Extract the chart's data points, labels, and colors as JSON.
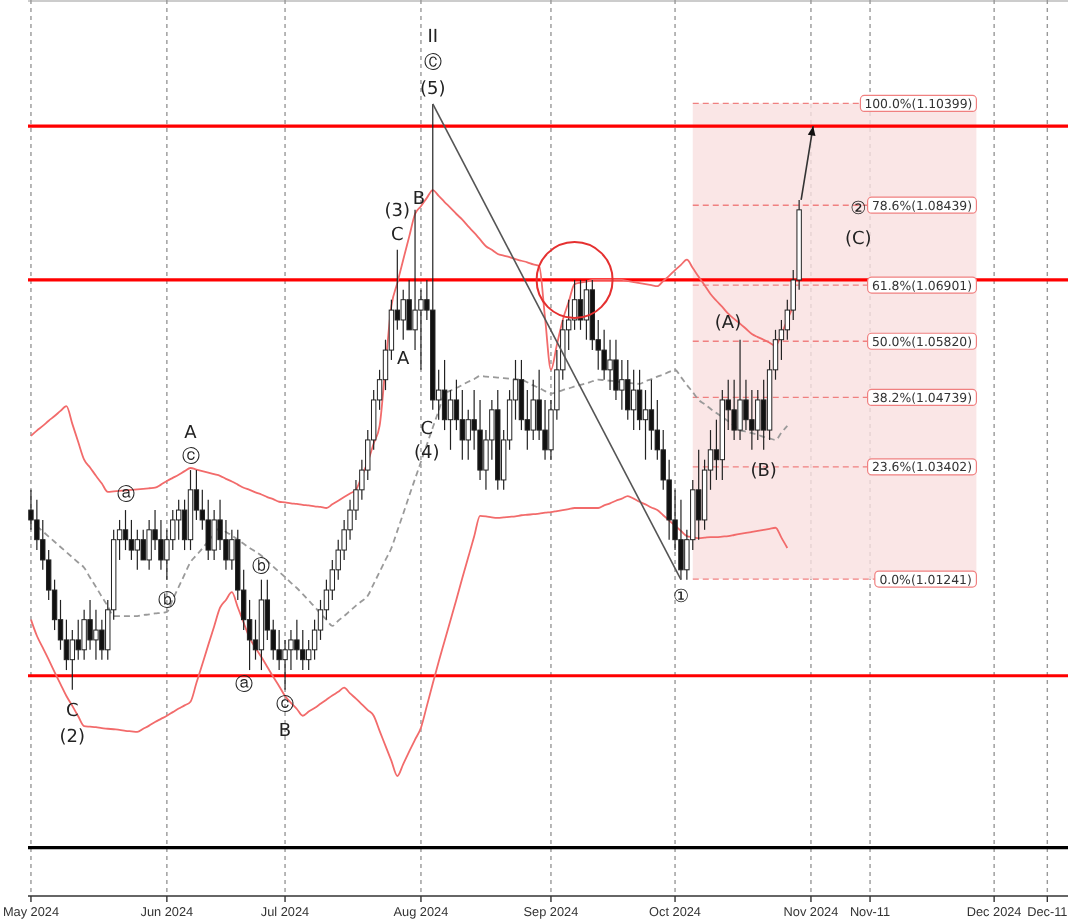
{
  "chart_data": {
    "type": "candlestick",
    "categories": [
      "May 2024",
      null,
      null,
      null,
      null,
      null,
      null,
      null,
      null,
      null,
      null,
      null,
      null,
      null,
      null,
      null,
      null,
      null,
      null,
      null,
      null,
      null,
      null,
      "Jun 2024",
      null,
      null,
      null,
      null,
      null,
      null,
      null,
      null,
      null,
      null,
      null,
      null,
      null,
      null,
      null,
      null,
      null,
      null,
      null,
      "Jul 2024",
      null,
      null,
      null,
      null,
      null,
      null,
      null,
      null,
      null,
      null,
      null,
      null,
      null,
      null,
      null,
      null,
      null,
      null,
      null,
      null,
      null,
      null,
      "Aug 2024",
      null,
      null,
      null,
      null,
      null,
      null,
      null,
      null,
      null,
      null,
      null,
      null,
      null,
      null,
      null,
      null,
      null,
      null,
      null,
      null,
      null,
      "Sep 2024",
      null,
      null,
      null,
      null,
      null,
      null,
      null,
      null,
      null,
      null,
      null,
      null,
      null,
      null,
      null,
      null,
      null,
      null,
      null,
      null,
      "Oct 2024",
      null,
      null,
      null,
      null,
      null,
      null,
      null,
      null,
      null,
      null,
      null,
      null,
      null,
      null,
      null,
      null,
      null,
      null,
      null,
      null,
      null,
      null,
      "Nov 2024",
      null,
      null,
      null,
      null,
      null,
      null,
      null,
      null,
      null,
      "Nov-11",
      null,
      null,
      null,
      null,
      null,
      null,
      null,
      null,
      null,
      null,
      null,
      null,
      null,
      null,
      null,
      null,
      null,
      null,
      null,
      null,
      "Dec 2024",
      null,
      null,
      null,
      null,
      null,
      null,
      null,
      null,
      "Dec-11",
      null,
      null,
      null
    ],
    "ohlc": [
      [
        1.0257,
        1.0296,
        1.0219,
        1.0238
      ],
      [
        1.0238,
        1.0277,
        1.018,
        1.02
      ],
      [
        1.02,
        1.0238,
        1.0142,
        1.0161
      ],
      [
        1.0161,
        1.018,
        1.0084,
        1.0103
      ],
      [
        1.0103,
        1.0123,
        1.0026,
        1.0046
      ],
      [
        1.0046,
        1.0084,
        0.9988,
        1.0007
      ],
      [
        1.0007,
        1.0046,
        0.9949,
        0.9969
      ],
      [
        0.9969,
        1.0026,
        0.9911,
        1.0007
      ],
      [
        1.0007,
        1.0046,
        0.9969,
        0.9988
      ],
      [
        0.9988,
        1.0065,
        0.9969,
        1.0046
      ],
      [
        1.0046,
        1.0084,
        0.9988,
        1.0007
      ],
      [
        1.0007,
        1.0065,
        0.9969,
        1.0026
      ],
      [
        1.0026,
        1.0046,
        0.9969,
        0.9988
      ],
      [
        0.9988,
        1.0084,
        0.9969,
        1.0065
      ],
      [
        1.0065,
        1.0219,
        1.0046,
        1.02
      ],
      [
        1.02,
        1.0238,
        1.0161,
        1.0219
      ],
      [
        1.0219,
        1.0257,
        1.018,
        1.02
      ],
      [
        1.02,
        1.0238,
        1.0161,
        1.018
      ],
      [
        1.018,
        1.0219,
        1.0142,
        1.02
      ],
      [
        1.02,
        1.0219,
        1.0161,
        1.0161
      ],
      [
        1.0161,
        1.0238,
        1.0142,
        1.0219
      ],
      [
        1.0219,
        1.0257,
        1.018,
        1.02
      ],
      [
        1.02,
        1.0238,
        1.0142,
        1.0161
      ],
      [
        1.0161,
        1.0219,
        1.0123,
        1.02
      ],
      [
        1.02,
        1.0257,
        1.018,
        1.0238
      ],
      [
        1.0238,
        1.0277,
        1.02,
        1.0257
      ],
      [
        1.0257,
        1.0277,
        1.018,
        1.02
      ],
      [
        1.02,
        1.0334,
        1.018,
        1.0296
      ],
      [
        1.0296,
        1.0334,
        1.0238,
        1.0257
      ],
      [
        1.0257,
        1.0296,
        1.0219,
        1.0238
      ],
      [
        1.0238,
        1.0277,
        1.0161,
        1.018
      ],
      [
        1.018,
        1.0257,
        1.0161,
        1.0238
      ],
      [
        1.0238,
        1.0277,
        1.018,
        1.02
      ],
      [
        1.02,
        1.0238,
        1.0142,
        1.0161
      ],
      [
        1.0161,
        1.0219,
        1.0142,
        1.02
      ],
      [
        1.02,
        1.0219,
        1.0084,
        1.0103
      ],
      [
        1.0103,
        1.0142,
        1.0026,
        1.0046
      ],
      [
        1.0046,
        1.0084,
        0.9949,
        1.0007
      ],
      [
        1.0007,
        1.0046,
        0.9969,
        0.9988
      ],
      [
        0.9988,
        1.0123,
        0.9949,
        1.0084
      ],
      [
        1.0084,
        1.0123,
        1.0007,
        1.0026
      ],
      [
        1.0026,
        1.0046,
        0.9969,
        0.9988
      ],
      [
        0.9988,
        1.0026,
        0.9949,
        0.9969
      ],
      [
        0.9969,
        1.0007,
        0.9911,
        0.9988
      ],
      [
        0.9988,
        1.0026,
        0.9949,
        1.0007
      ],
      [
        1.0007,
        1.0046,
        0.9969,
        0.9988
      ],
      [
        0.9988,
        1.0026,
        0.9949,
        0.9969
      ],
      [
        0.9969,
        1.0007,
        0.9949,
        0.9988
      ],
      [
        0.9988,
        1.0046,
        0.9969,
        1.0026
      ],
      [
        1.0026,
        1.0084,
        1.0007,
        1.0065
      ],
      [
        1.0065,
        1.0123,
        1.0046,
        1.0103
      ],
      [
        1.0103,
        1.0161,
        1.0084,
        1.0142
      ],
      [
        1.0142,
        1.02,
        1.0123,
        1.018
      ],
      [
        1.018,
        1.0238,
        1.0161,
        1.0219
      ],
      [
        1.0219,
        1.0277,
        1.02,
        1.0257
      ],
      [
        1.0257,
        1.0315,
        1.0238,
        1.0296
      ],
      [
        1.0296,
        1.0354,
        1.0277,
        1.0334
      ],
      [
        1.0334,
        1.0411,
        1.0315,
        1.0392
      ],
      [
        1.0392,
        1.0488,
        1.0373,
        1.0469
      ],
      [
        1.0469,
        1.0527,
        1.045,
        1.0508
      ],
      [
        1.0508,
        1.0585,
        1.0488,
        1.0565
      ],
      [
        1.0565,
        1.0662,
        1.0546,
        1.0642
      ],
      [
        1.0642,
        1.0758,
        1.0604,
        1.0623
      ],
      [
        1.0623,
        1.0681,
        1.0585,
        1.0662
      ],
      [
        1.0662,
        1.07,
        1.0604,
        1.0604
      ],
      [
        1.0604,
        1.0835,
        1.0565,
        1.0642
      ],
      [
        1.0642,
        1.0681,
        1.0527,
        1.0662
      ],
      [
        1.0662,
        1.07,
        1.0623,
        1.0642
      ],
      [
        1.0642,
        1.1039,
        1.045,
        1.0469
      ],
      [
        1.0469,
        1.0527,
        1.0431,
        1.0488
      ],
      [
        1.0488,
        1.0546,
        1.0411,
        1.0431
      ],
      [
        1.0431,
        1.0488,
        1.0373,
        1.0469
      ],
      [
        1.0469,
        1.0508,
        1.0411,
        1.0431
      ],
      [
        1.0431,
        1.0488,
        1.0354,
        1.0392
      ],
      [
        1.0392,
        1.045,
        1.0354,
        1.0431
      ],
      [
        1.0431,
        1.0488,
        1.0373,
        1.0411
      ],
      [
        1.0411,
        1.0469,
        1.0315,
        1.0334
      ],
      [
        1.0334,
        1.0411,
        1.0296,
        1.0392
      ],
      [
        1.0392,
        1.0469,
        1.0354,
        1.045
      ],
      [
        1.045,
        1.0488,
        1.0296,
        1.0315
      ],
      [
        1.0315,
        1.0411,
        1.0296,
        1.0392
      ],
      [
        1.0392,
        1.0488,
        1.0373,
        1.0469
      ],
      [
        1.0469,
        1.0546,
        1.0431,
        1.0508
      ],
      [
        1.0508,
        1.0546,
        1.0411,
        1.0431
      ],
      [
        1.0431,
        1.0488,
        1.0373,
        1.0411
      ],
      [
        1.0411,
        1.0508,
        1.0392,
        1.0469
      ],
      [
        1.0469,
        1.0527,
        1.0392,
        1.0411
      ],
      [
        1.0411,
        1.0469,
        1.0354,
        1.0373
      ],
      [
        1.0373,
        1.0469,
        1.0354,
        1.045
      ],
      [
        1.045,
        1.0565,
        1.0431,
        1.0527
      ],
      [
        1.0527,
        1.0623,
        1.0508,
        1.0604
      ],
      [
        1.0604,
        1.0662,
        1.0565,
        1.0623
      ],
      [
        1.0623,
        1.07,
        1.0604,
        1.0662
      ],
      [
        1.0662,
        1.07,
        1.0604,
        1.0623
      ],
      [
        1.0623,
        1.07,
        1.0585,
        1.0681
      ],
      [
        1.0681,
        1.07,
        1.0565,
        1.0585
      ],
      [
        1.0585,
        1.0623,
        1.0527,
        1.0565
      ],
      [
        1.0565,
        1.0604,
        1.0508,
        1.0527
      ],
      [
        1.0527,
        1.0585,
        1.0488,
        1.0546
      ],
      [
        1.0546,
        1.0585,
        1.0469,
        1.0488
      ],
      [
        1.0488,
        1.0546,
        1.045,
        1.0508
      ],
      [
        1.0508,
        1.0546,
        1.0431,
        1.045
      ],
      [
        1.045,
        1.0527,
        1.0411,
        1.0488
      ],
      [
        1.0488,
        1.0527,
        1.0411,
        1.0431
      ],
      [
        1.0431,
        1.0488,
        1.0354,
        1.045
      ],
      [
        1.045,
        1.0508,
        1.0373,
        1.0411
      ],
      [
        1.0411,
        1.0469,
        1.0354,
        1.0373
      ],
      [
        1.0373,
        1.0411,
        1.0296,
        1.0315
      ],
      [
        1.0315,
        1.0354,
        1.02,
        1.0238
      ],
      [
        1.0238,
        1.0296,
        1.018,
        1.02
      ],
      [
        1.02,
        1.0277,
        1.0123,
        1.0142
      ],
      [
        1.0142,
        1.0219,
        1.0123,
        1.02
      ],
      [
        1.02,
        1.0315,
        1.018,
        1.0296
      ],
      [
        1.0296,
        1.0373,
        1.02,
        1.0238
      ],
      [
        1.0238,
        1.0354,
        1.0219,
        1.0334
      ],
      [
        1.0334,
        1.0411,
        1.0296,
        1.0373
      ],
      [
        1.0373,
        1.0431,
        1.0315,
        1.0354
      ],
      [
        1.0354,
        1.0488,
        1.0315,
        1.0469
      ],
      [
        1.0469,
        1.0508,
        1.0411,
        1.045
      ],
      [
        1.045,
        1.0508,
        1.0392,
        1.0411
      ],
      [
        1.0411,
        1.0585,
        1.0392,
        1.0469
      ],
      [
        1.0469,
        1.0508,
        1.0411,
        1.0431
      ],
      [
        1.0431,
        1.0488,
        1.0373,
        1.0411
      ],
      [
        1.0411,
        1.0488,
        1.0392,
        1.0469
      ],
      [
        1.0469,
        1.0508,
        1.0373,
        1.0411
      ],
      [
        1.0411,
        1.0546,
        1.0392,
        1.0527
      ],
      [
        1.0527,
        1.0604,
        1.0508,
        1.0585
      ],
      [
        1.0585,
        1.0623,
        1.0546,
        1.0604
      ],
      [
        1.0604,
        1.0662,
        1.0585,
        1.0642
      ],
      [
        1.0642,
        1.0719,
        1.0623,
        1.07
      ],
      [
        1.07,
        1.0854,
        1.0681,
        1.0835
      ],
      null,
      null,
      null,
      null,
      null,
      null,
      null,
      null,
      null,
      null,
      null,
      null,
      null,
      null,
      null,
      null,
      null,
      null,
      null,
      null,
      null,
      null,
      null,
      null,
      null,
      null,
      null,
      null,
      null,
      null,
      null,
      null,
      null,
      null,
      null,
      null,
      null,
      null,
      null,
      null,
      null,
      null,
      null,
      null,
      null
    ],
    "series": [
      {
        "type": "line",
        "color": "#f26b6b",
        "values": [
          1.04,
          1.041,
          1.0419,
          1.0429,
          1.0438,
          1.0448,
          1.0457,
          1.0423,
          1.0388,
          1.0354,
          1.0339,
          1.0323,
          1.0308,
          1.0292,
          1.0293,
          1.0294,
          1.0295,
          1.0296,
          1.0297,
          1.0298,
          1.0299,
          1.03,
          1.0306,
          1.0313,
          1.0319,
          1.0325,
          1.0332,
          1.0338,
          1.0335,
          1.0332,
          1.0329,
          1.0326,
          1.0323,
          1.0317,
          1.0312,
          1.0306,
          1.03,
          1.0296,
          1.0291,
          1.0287,
          1.0282,
          1.0278,
          1.0273,
          1.0272,
          1.027,
          1.0269,
          1.0267,
          1.0266,
          1.0264,
          1.0263,
          1.0261,
          1.0268,
          1.0275,
          1.0282,
          1.0289,
          1.0296,
          1.0323,
          1.035,
          1.0385,
          1.0419,
          1.0535,
          1.065,
          1.0694,
          1.0739,
          1.0783,
          1.0827,
          1.0842,
          1.0858,
          1.0873,
          1.0862,
          1.085,
          1.0839,
          1.0827,
          1.0816,
          1.0803,
          1.0791,
          1.0778,
          1.0765,
          1.0758,
          1.075,
          1.0747,
          1.0744,
          1.074,
          1.0737,
          1.0734,
          1.073,
          1.0727,
          1.0627,
          1.0527,
          1.0575,
          1.0623,
          1.0658,
          1.0692,
          1.0695,
          1.0697,
          1.07,
          1.07,
          1.07,
          1.07,
          1.07,
          1.07,
          1.0698,
          1.0696,
          1.0694,
          1.0692,
          1.069,
          1.0688,
          1.0698,
          1.0708,
          1.0719,
          1.0729,
          1.0739,
          1.0723,
          1.0706,
          1.069,
          1.0673,
          1.066,
          1.0648,
          1.0635,
          1.0625,
          1.0616,
          1.0606,
          1.0596,
          1.059,
          1.0585,
          1.0579,
          1.0573,
          1.0596,
          1.0623,
          1.065,
          null,
          null,
          null,
          null,
          null,
          null,
          null,
          null,
          null,
          null,
          null,
          null,
          null,
          null,
          null,
          null,
          null,
          null,
          null,
          null,
          null,
          null,
          null,
          null,
          null,
          null,
          null,
          null,
          null,
          null,
          null,
          null,
          null,
          null,
          null,
          null,
          null,
          null,
          null,
          null,
          null,
          null,
          null,
          null,
          null,
          null
        ]
      },
      {
        "type": "line",
        "color": "#f26b6b",
        "values": [
          1.0046,
          1.0015,
          0.9992,
          0.9969,
          0.9945,
          0.9922,
          0.9899,
          0.988,
          0.986,
          0.9841,
          0.984,
          0.9839,
          0.9837,
          0.9836,
          0.9835,
          0.9834,
          0.9832,
          0.9831,
          0.983,
          0.9836,
          0.9842,
          0.9849,
          0.9855,
          0.9861,
          0.9868,
          0.9875,
          0.9881,
          0.9888,
          0.9924,
          0.996,
          0.9997,
          1.0033,
          1.0069,
          1.0084,
          1.0099,
          1.007,
          1.004,
          1.0011,
          0.9992,
          0.9974,
          0.9955,
          0.9936,
          0.9918,
          0.9899,
          0.9886,
          0.9874,
          0.9861,
          0.9869,
          0.9876,
          0.9884,
          0.9892,
          0.99,
          0.9907,
          0.9915,
          0.9904,
          0.9894,
          0.9883,
          0.9872,
          0.9861,
          0.9832,
          0.9803,
          0.9774,
          0.9745,
          0.9768,
          0.9792,
          0.9815,
          0.9838,
          0.988,
          0.9923,
          0.9965,
          1.0005,
          1.0045,
          1.0085,
          1.0126,
          1.0166,
          1.0206,
          1.0246,
          1.0245,
          1.0243,
          1.0242,
          1.0243,
          1.0244,
          1.0245,
          1.0247,
          1.0248,
          1.0249,
          1.025,
          1.0252,
          1.0253,
          1.0255,
          1.0257,
          1.0259,
          1.0261,
          1.0261,
          1.0261,
          1.0261,
          1.0261,
          1.0266,
          1.027,
          1.0275,
          1.0279,
          1.0284,
          1.0279,
          1.0273,
          1.0268,
          1.0262,
          1.0257,
          1.0247,
          1.0237,
          1.0227,
          1.0217,
          1.0207,
          1.0205,
          1.0203,
          1.0204,
          1.0205,
          1.0205,
          1.0206,
          1.0207,
          1.0209,
          1.0211,
          1.0213,
          1.0215,
          1.0217,
          1.0219,
          1.0221,
          1.0223,
          1.0204,
          1.0184,
          null,
          null,
          null,
          null,
          null,
          null,
          null,
          null,
          null,
          null,
          null,
          null,
          null,
          null,
          null,
          null,
          null,
          null,
          null,
          null,
          null,
          null,
          null,
          null,
          null,
          null,
          null,
          null,
          null,
          null,
          null,
          null,
          null,
          null,
          null,
          null,
          null,
          null,
          null,
          null,
          null,
          null,
          null,
          null,
          null,
          null,
          null
        ]
      },
      {
        "type": "line",
        "color": "#9a9a9a",
        "line_style": "dashed",
        "values": [
          null,
          1.0226,
          1.0216,
          1.0206,
          1.0196,
          1.0186,
          1.0176,
          1.0166,
          1.0156,
          1.0146,
          1.0127,
          1.0109,
          1.009,
          1.0072,
          1.0053,
          1.0053,
          1.0053,
          1.0053,
          1.0053,
          1.0055,
          1.0056,
          1.0058,
          1.0059,
          1.0061,
          1.0085,
          1.0109,
          1.0133,
          1.0157,
          1.017,
          1.0183,
          1.0197,
          1.021,
          1.0223,
          1.0215,
          1.0208,
          1.02,
          1.0192,
          1.0184,
          1.0177,
          1.0169,
          1.0159,
          1.0148,
          1.0138,
          1.0128,
          1.0117,
          1.0107,
          1.0095,
          1.0083,
          1.0071,
          1.0058,
          1.0046,
          1.0034,
          1.0044,
          1.0053,
          1.0063,
          1.0073,
          1.0082,
          1.0092,
          1.0115,
          1.0138,
          1.0161,
          1.0184,
          1.0217,
          1.025,
          1.0284,
          1.0317,
          1.035,
          1.0383,
          1.0416,
          1.0448,
          1.0481,
          1.0487,
          1.0492,
          1.0498,
          1.0504,
          1.0509,
          1.0515,
          1.0514,
          1.0513,
          1.0512,
          1.0511,
          1.051,
          1.0509,
          1.0508,
          1.0503,
          1.0497,
          1.0492,
          1.0486,
          1.0481,
          1.0484,
          1.0488,
          1.0491,
          1.0495,
          1.0498,
          1.0501,
          1.0505,
          1.0508,
          1.0507,
          1.0506,
          1.0505,
          1.0503,
          1.0502,
          1.0501,
          1.05,
          1.0505,
          1.0509,
          1.0514,
          1.0518,
          1.0523,
          1.0527,
          1.0513,
          1.0498,
          1.0484,
          1.0469,
          1.0461,
          1.0452,
          1.0444,
          1.0436,
          1.0428,
          1.0419,
          1.0411,
          1.0408,
          1.0405,
          1.0402,
          1.0398,
          1.0395,
          1.0392,
          1.0406,
          1.0419,
          null,
          null,
          null,
          null,
          null,
          null,
          null,
          null,
          null,
          null,
          null,
          null,
          null,
          null,
          null,
          null,
          null,
          null,
          null,
          null,
          null,
          null,
          null,
          null,
          null,
          null,
          null,
          null,
          null,
          null,
          null,
          null,
          null,
          null,
          null,
          null,
          null,
          null,
          null,
          null,
          null,
          null,
          null,
          null,
          null,
          null,
          null
        ]
      }
    ],
    "ylim": [
      0.9514,
      1.1239
    ],
    "grid": "x",
    "bands": [
      {
        "axis": "y",
        "from": 1.01241,
        "to": 1.10399,
        "color": "#f9e0e0"
      }
    ],
    "ref_lines": [
      {
        "axis": "y",
        "value": 1.0996,
        "color": "#ff0000"
      },
      {
        "axis": "y",
        "value": 1.07,
        "color": "#ff0000"
      },
      {
        "axis": "y",
        "value": 0.9938,
        "color": "#ff0000"
      },
      {
        "axis": "y",
        "value": 0.9607,
        "color": "#000000"
      },
      {
        "axis": "y",
        "value": 1.10399,
        "label": "100.0%(1.10399)",
        "color": "#f08080",
        "line_style": "dashed"
      },
      {
        "axis": "y",
        "value": 1.08439,
        "label": "78.6%(1.08439)",
        "color": "#f08080",
        "line_style": "dashed"
      },
      {
        "axis": "y",
        "value": 1.06901,
        "label": "61.8%(1.06901)",
        "color": "#f08080",
        "line_style": "dashed"
      },
      {
        "axis": "y",
        "value": 1.0582,
        "label": "50.0%(1.05820)",
        "color": "#f08080",
        "line_style": "dashed"
      },
      {
        "axis": "y",
        "value": 1.04739,
        "label": "38.2%(1.04739)",
        "color": "#f08080",
        "line_style": "dashed"
      },
      {
        "axis": "y",
        "value": 1.03402,
        "label": "23.6%(1.03402)",
        "color": "#f08080",
        "line_style": "dashed"
      },
      {
        "axis": "y",
        "value": 1.01241,
        "label": "0.0%(1.01241)",
        "color": "#f08080",
        "line_style": "dashed"
      }
    ],
    "annotations": [
      "II",
      "Ⓒ",
      "(5)",
      "(3)",
      "C",
      "B",
      "A",
      "C",
      "(4)",
      "A",
      "ⓒ",
      "ⓐ",
      "ⓑ",
      "C",
      "(2)",
      "ⓑ",
      "ⓐ",
      "ⓒ",
      "B",
      "(A)",
      "(B)",
      "①",
      "②",
      "(C)"
    ]
  }
}
